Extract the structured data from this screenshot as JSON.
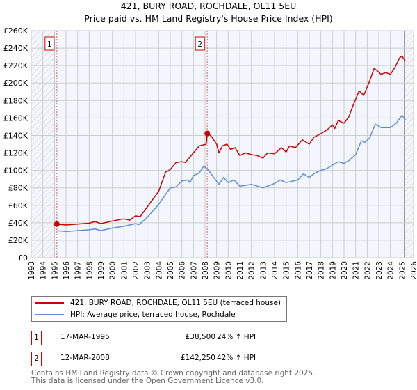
{
  "chart_data": {
    "type": "line",
    "title": "421, BURY ROAD, ROCHDALE, OL11 5EU",
    "subtitle": "Price paid vs. HM Land Registry's House Price Index (HPI)",
    "xlim": [
      1993,
      2026
    ],
    "ylim": [
      0,
      260000
    ],
    "x_ticks": [
      "1993",
      "1994",
      "1995",
      "1996",
      "1997",
      "1998",
      "1999",
      "2000",
      "2001",
      "2002",
      "2003",
      "2004",
      "2005",
      "2006",
      "2007",
      "2008",
      "2009",
      "2010",
      "2011",
      "2012",
      "2013",
      "2014",
      "2015",
      "2016",
      "2017",
      "2018",
      "2019",
      "2020",
      "2021",
      "2022",
      "2023",
      "2024",
      "2025",
      "2026"
    ],
    "y_ticks": [
      {
        "v": 0,
        "label": "£0"
      },
      {
        "v": 20000,
        "label": "£20K"
      },
      {
        "v": 40000,
        "label": "£40K"
      },
      {
        "v": 60000,
        "label": "£60K"
      },
      {
        "v": 80000,
        "label": "£80K"
      },
      {
        "v": 100000,
        "label": "£100K"
      },
      {
        "v": 120000,
        "label": "£120K"
      },
      {
        "v": 140000,
        "label": "£140K"
      },
      {
        "v": 160000,
        "label": "£160K"
      },
      {
        "v": 180000,
        "label": "£180K"
      },
      {
        "v": 200000,
        "label": "£200K"
      },
      {
        "v": 220000,
        "label": "£220K"
      },
      {
        "v": 240000,
        "label": "£240K"
      },
      {
        "v": 260000,
        "label": "£260K"
      }
    ],
    "grid": true,
    "hatched_ranges": [
      [
        1993,
        1995.0
      ],
      [
        2025.25,
        2026
      ]
    ],
    "series": [
      {
        "name": "421, BURY ROAD, ROCHDALE, OL11 5EU (terraced house)",
        "color": "#cc0000",
        "x": [
          1995.21,
          1996,
          1997,
          1998,
          1998.5,
          1999,
          2000,
          2001,
          2001.5,
          2002,
          2002.4,
          2003,
          2004,
          2004.6,
          2005,
          2005.5,
          2006,
          2006.3,
          2007,
          2007.5,
          2008.1,
          2008.19,
          2008.3,
          2008.6,
          2009,
          2009.2,
          2009.5,
          2009.9,
          2010.2,
          2010.6,
          2011,
          2011.5,
          2012,
          2012.5,
          2013,
          2013.4,
          2014,
          2014.6,
          2015,
          2015.3,
          2015.8,
          2016.4,
          2017,
          2017.4,
          2018,
          2018.5,
          2019,
          2019.2,
          2019.5,
          2020,
          2020.4,
          2020.8,
          2021.3,
          2021.7,
          2022.2,
          2022.6,
          2023.2,
          2023.6,
          2024,
          2024.4,
          2024.8,
          2025,
          2025.3
        ],
        "values": [
          38500,
          37500,
          38500,
          39500,
          41500,
          39000,
          42000,
          44500,
          43000,
          48000,
          47000,
          58000,
          76000,
          98000,
          101000,
          109000,
          110000,
          109000,
          120000,
          128000,
          130000,
          142250,
          142000,
          138000,
          130000,
          120000,
          128000,
          130000,
          124000,
          126000,
          117000,
          120000,
          118000,
          117000,
          114000,
          120000,
          119000,
          126000,
          121000,
          128000,
          126000,
          135000,
          130000,
          138000,
          142000,
          146000,
          152000,
          148000,
          157000,
          154000,
          161000,
          175000,
          191000,
          186000,
          202000,
          217000,
          210000,
          212000,
          210000,
          218000,
          229000,
          231000,
          225000
        ]
      },
      {
        "name": "HPI: Average price, terraced house, Rochdale",
        "color": "#5b8fd6",
        "x": [
          1995.21,
          1996,
          1998,
          1998.5,
          1999,
          2000,
          2001,
          2002,
          2002.3,
          2003,
          2004,
          2005,
          2005.5,
          2006,
          2006.5,
          2006.7,
          2007,
          2007.5,
          2007.9,
          2008.3,
          2009.2,
          2009.6,
          2010,
          2010.5,
          2011,
          2012,
          2013,
          2014,
          2014.5,
          2015,
          2016,
          2016.5,
          2017,
          2017.5,
          2018,
          2018.5,
          2019,
          2019.5,
          2020,
          2020.5,
          2021,
          2021.5,
          2021.8,
          2022.2,
          2022.7,
          2023.2,
          2024,
          2024.5,
          2025,
          2025.3
        ],
        "values": [
          31000,
          30000,
          32000,
          33000,
          31000,
          34000,
          36000,
          39000,
          38000,
          46000,
          61000,
          80000,
          81000,
          88000,
          89000,
          86000,
          94000,
          97000,
          105000,
          100000,
          84000,
          92000,
          86000,
          89000,
          82000,
          84000,
          80000,
          85000,
          89000,
          86000,
          89000,
          96000,
          92000,
          97000,
          100000,
          102000,
          106000,
          110000,
          108000,
          112000,
          118000,
          134000,
          132000,
          137000,
          153000,
          149000,
          149000,
          154000,
          163000,
          158000
        ]
      }
    ],
    "annotations": [
      {
        "label": "1",
        "x": 1995.21,
        "value": 38500
      },
      {
        "label": "2",
        "x": 2008.19,
        "value": 142250
      }
    ]
  },
  "legend": {
    "items": [
      {
        "label": "421, BURY ROAD, ROCHDALE, OL11 5EU (terraced house)",
        "color": "#cc0000"
      },
      {
        "label": "HPI: Average price, terraced house, Rochdale",
        "color": "#5b8fd6"
      }
    ]
  },
  "sales": [
    {
      "num": "1",
      "date": "17-MAR-1995",
      "price": "£38,500",
      "hpi": "24% ↑ HPI"
    },
    {
      "num": "2",
      "date": "12-MAR-2008",
      "price": "£142,250",
      "hpi": "42% ↑ HPI"
    }
  ],
  "footer": {
    "line1": "Contains HM Land Registry data © Crown copyright and database right 2025.",
    "line2": "This data is licensed under the Open Government Licence v3.0."
  }
}
